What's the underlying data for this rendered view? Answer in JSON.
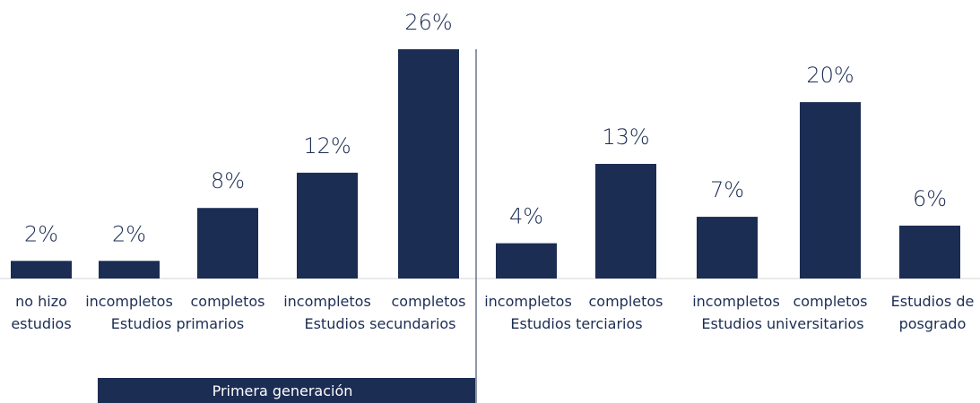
{
  "chart_data": {
    "type": "bar",
    "categories": [
      "no hizo estudios",
      "Estudios primarios incompletos",
      "Estudios primarios completos",
      "Estudios secundarios incompletos",
      "Estudios secundarios completos",
      "Estudios terciarios incompletos",
      "Estudios terciarios completos",
      "Estudios universitarios incompletos",
      "Estudios universitarios completos",
      "Estudios de posgrado"
    ],
    "values": [
      2,
      2,
      8,
      12,
      26,
      4,
      13,
      7,
      20,
      6
    ],
    "value_labels": [
      "2%",
      "2%",
      "8%",
      "12%",
      "26%",
      "4%",
      "13%",
      "7%",
      "20%",
      "6%"
    ],
    "label_lines": [
      [
        "no hizo",
        "estudios"
      ],
      [
        "incompletos",
        ""
      ],
      [
        "completos",
        ""
      ],
      [
        "incompletos",
        ""
      ],
      [
        "completos",
        ""
      ],
      [
        "incompletos",
        ""
      ],
      [
        "completos",
        ""
      ],
      [
        "incompletos",
        ""
      ],
      [
        "completos",
        ""
      ],
      [
        "Estudios de",
        "posgrado"
      ]
    ],
    "group_labels": [
      "Estudios primarios",
      "Estudios secundarios",
      "Estudios terciarios",
      "Estudios universitarios"
    ],
    "ylim": [
      0,
      26
    ],
    "grid": false,
    "bar_color": "#1c2d54",
    "annotation": "Primera generación"
  }
}
